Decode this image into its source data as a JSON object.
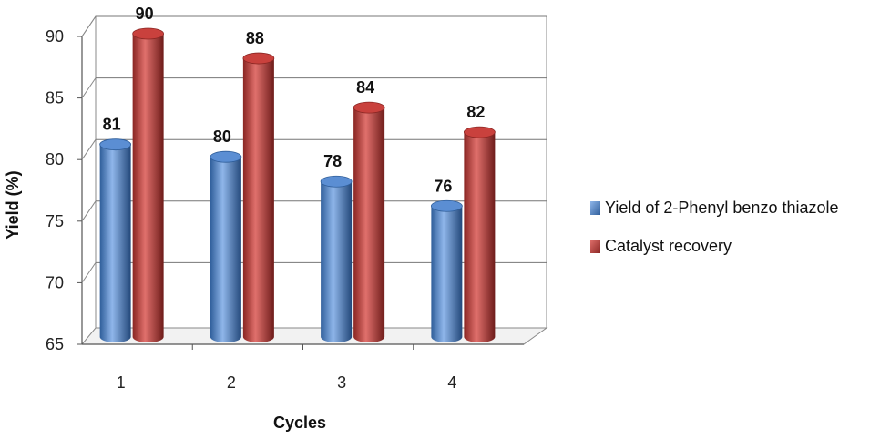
{
  "chart_data": {
    "type": "bar",
    "categories": [
      "1",
      "2",
      "3",
      "4"
    ],
    "series": [
      {
        "name": "Yield of 2-Phenyl benzo thiazole",
        "values": [
          81,
          80,
          78,
          76
        ],
        "color": "#4f81bd"
      },
      {
        "name": "Catalyst recovery",
        "values": [
          90,
          88,
          84,
          82
        ],
        "color": "#c0504d"
      }
    ],
    "xlabel": "Cycles",
    "ylabel": "Yield (%)",
    "ylim": [
      65,
      90
    ],
    "yticks": [
      65,
      70,
      75,
      80,
      85,
      90
    ],
    "grid": true,
    "legend": "right",
    "data_labels": true,
    "style": "3d-cylinder"
  }
}
